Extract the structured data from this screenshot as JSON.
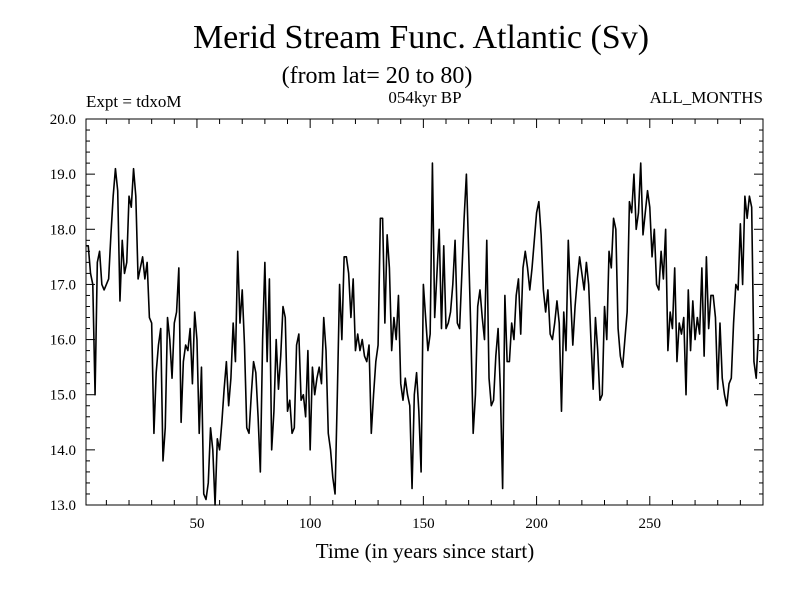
{
  "chart_data": {
    "type": "line",
    "title": "Merid Stream Func. Atlantic (Sv)",
    "subtitle": "(from lat= 20 to 80)",
    "annotation_left": "Expt = tdxoM",
    "annotation_center": "054kyr BP",
    "annotation_right": "ALL_MONTHS",
    "xlabel": "Time (in years since start)",
    "ylabel": "",
    "xlim": [
      1,
      300
    ],
    "ylim": [
      13.0,
      20.0
    ],
    "x_ticks": [
      50,
      100,
      150,
      200,
      250
    ],
    "y_ticks": [
      "13.0",
      "14.0",
      "15.0",
      "16.0",
      "17.0",
      "18.0",
      "19.0",
      "20.0"
    ],
    "grid": false,
    "series": [
      {
        "name": "",
        "x_start": 1,
        "x_step": 1,
        "values": [
          17.7,
          17.7,
          17.2,
          17.0,
          15.0,
          17.4,
          17.6,
          17.0,
          16.9,
          17.0,
          17.1,
          17.9,
          18.6,
          19.1,
          18.7,
          16.7,
          17.8,
          17.2,
          17.4,
          18.6,
          18.4,
          19.1,
          18.6,
          17.1,
          17.3,
          17.5,
          17.1,
          17.4,
          16.4,
          16.3,
          14.3,
          15.4,
          15.9,
          16.2,
          13.8,
          14.4,
          16.4,
          16.0,
          15.3,
          16.3,
          16.5,
          17.3,
          14.5,
          15.6,
          15.9,
          15.8,
          16.2,
          15.2,
          16.5,
          16.0,
          14.3,
          15.5,
          13.2,
          13.1,
          13.4,
          14.4,
          14.0,
          12.9,
          14.2,
          14.0,
          14.5,
          15.1,
          15.6,
          14.8,
          15.3,
          16.3,
          15.6,
          17.6,
          16.3,
          16.9,
          15.9,
          14.4,
          14.3,
          15.0,
          15.6,
          15.4,
          14.6,
          13.6,
          16.0,
          17.4,
          15.6,
          17.1,
          14.0,
          14.7,
          16.0,
          15.1,
          15.7,
          16.6,
          16.4,
          14.7,
          14.9,
          14.3,
          14.4,
          15.9,
          16.1,
          14.9,
          15.0,
          14.6,
          15.8,
          14.0,
          15.5,
          15.0,
          15.3,
          15.5,
          15.2,
          16.4,
          15.8,
          14.3,
          14.0,
          13.5,
          13.2,
          15.0,
          17.0,
          16.0,
          17.5,
          17.5,
          17.2,
          16.4,
          17.1,
          15.8,
          16.1,
          15.8,
          16.0,
          15.7,
          15.6,
          15.9,
          14.3,
          15.0,
          15.6,
          15.9,
          18.2,
          18.2,
          16.3,
          17.9,
          17.3,
          15.8,
          16.4,
          16.0,
          16.8,
          15.2,
          14.9,
          15.3,
          15.0,
          14.8,
          13.3,
          15.0,
          15.4,
          14.7,
          13.6,
          17.0,
          16.4,
          15.8,
          16.1,
          19.2,
          16.4,
          17.2,
          18.0,
          16.2,
          17.7,
          16.2,
          16.3,
          16.5,
          17.0,
          17.8,
          16.3,
          16.2,
          17.2,
          18.2,
          19.0,
          17.6,
          16.1,
          14.3,
          15.0,
          16.6,
          16.9,
          16.4,
          16.0,
          17.8,
          15.3,
          14.8,
          14.9,
          15.7,
          16.2,
          15.1,
          13.3,
          16.8,
          15.6,
          15.6,
          16.3,
          16.0,
          16.8,
          17.1,
          16.1,
          17.3,
          17.6,
          17.3,
          16.9,
          17.3,
          17.8,
          18.3,
          18.5,
          17.9,
          16.9,
          16.5,
          16.9,
          16.1,
          16.0,
          16.3,
          16.7,
          16.3,
          14.7,
          16.5,
          15.8,
          17.8,
          16.8,
          15.9,
          16.6,
          17.1,
          17.5,
          17.2,
          16.9,
          17.4,
          17.0,
          16.0,
          15.1,
          16.4,
          15.8,
          14.9,
          15.0,
          16.6,
          16.0,
          17.6,
          17.3,
          18.2,
          18.0,
          16.2,
          15.7,
          15.5,
          16.0,
          16.5,
          18.5,
          18.3,
          19.0,
          18.0,
          18.3,
          19.2,
          17.9,
          18.3,
          18.7,
          18.4,
          17.5,
          18.0,
          17.0,
          16.9,
          17.6,
          17.1,
          18.0,
          15.8,
          16.5,
          16.2,
          17.3,
          15.6,
          16.3,
          16.1,
          16.4,
          15.0,
          16.9,
          15.8,
          16.7,
          16.0,
          16.4,
          16.1,
          17.3,
          15.7,
          17.5,
          16.2,
          16.8,
          16.8,
          16.4,
          15.1,
          16.3,
          15.3,
          15.0,
          14.8,
          15.2,
          15.3,
          16.3,
          17.0,
          16.9,
          18.1,
          17.0,
          18.6,
          18.2,
          18.6,
          18.4,
          15.6,
          15.3,
          16.1
        ]
      }
    ]
  }
}
